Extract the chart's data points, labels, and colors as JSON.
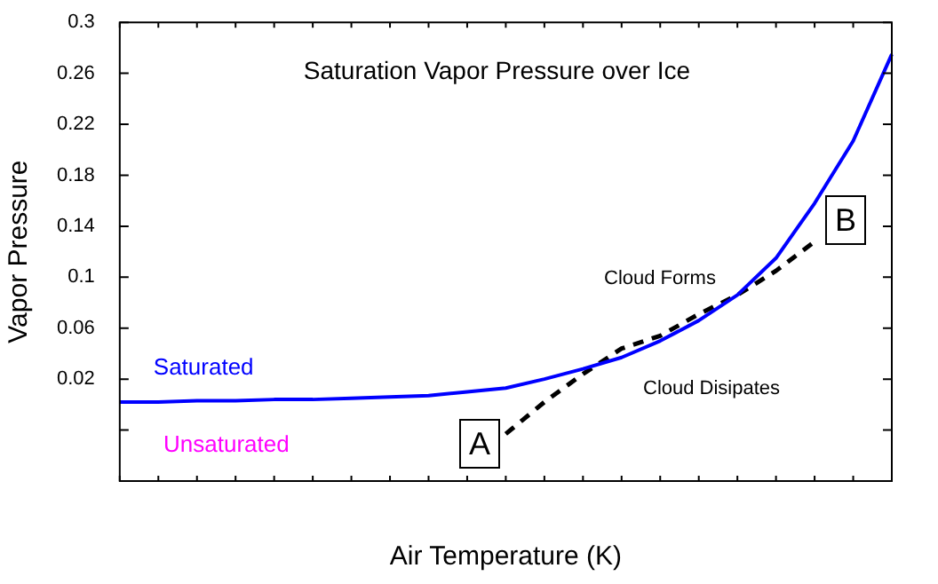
{
  "chart_data": {
    "type": "line",
    "title": "Saturation Vapor Pressure over Ice",
    "xlabel": "Air Temperature (K)",
    "ylabel": "Vapor Pressure",
    "categories": [
      null,
      null,
      null,
      null,
      null,
      null,
      null,
      null,
      null,
      null,
      null,
      null,
      null,
      null,
      null,
      null,
      null,
      null,
      null,
      null,
      null
    ],
    "ylim": [
      -0.06,
      0.3
    ],
    "yticks": [
      {
        "value": -0.02,
        "label": null
      },
      0.02,
      0.06,
      0.1,
      0.14,
      0.18,
      0.22,
      0.26,
      0.3
    ],
    "tick_labels": "y",
    "grid": false,
    "legend": false,
    "marker": "none",
    "series": [
      {
        "name": "Saturated",
        "color": "#0000ff",
        "line_style": "solid",
        "values": [
          0.002,
          0.002,
          0.003,
          0.003,
          0.004,
          0.004,
          0.005,
          0.006,
          0.007,
          0.01,
          0.013,
          0.02,
          0.028,
          0.037,
          0.05,
          0.066,
          0.086,
          0.115,
          0.158,
          0.207,
          0.275
        ]
      },
      {
        "color": "#000000",
        "line_style": "dashed",
        "values": [
          null,
          null,
          null,
          null,
          null,
          null,
          null,
          null,
          null,
          null,
          -0.023,
          0.002,
          0.024,
          0.044,
          0.054,
          0.071,
          0.086,
          0.105,
          0.128,
          null,
          null
        ]
      }
    ],
    "annotations": [
      "Unsaturated",
      "Cloud Forms",
      "Cloud Disipates",
      "A",
      "B"
    ]
  }
}
